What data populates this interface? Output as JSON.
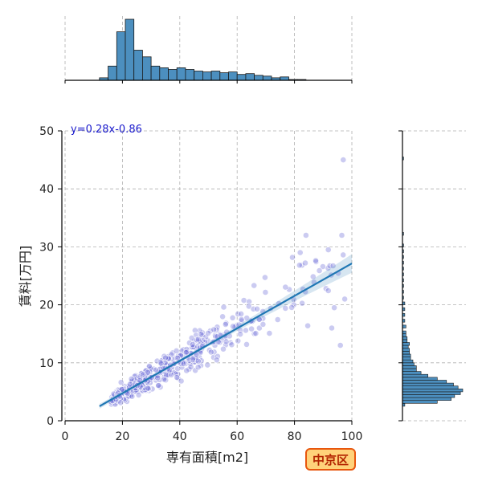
{
  "chart_data": {
    "type": "scatter",
    "title": "",
    "xlabel": "専有面積[m2]",
    "ylabel": "賃料[万円]",
    "xlim": [
      0,
      100
    ],
    "ylim": [
      0,
      50
    ],
    "x_ticks": [
      0,
      20,
      40,
      60,
      80,
      100
    ],
    "y_ticks": [
      0,
      10,
      20,
      30,
      40,
      50
    ],
    "grid": true,
    "regression": {
      "equation_label": "y=0.28x-0.86",
      "slope": 0.28,
      "intercept": -0.86,
      "x_range": [
        12,
        100
      ]
    },
    "badge": "中京区",
    "colors": {
      "points": "#6b6bd6",
      "regression_line": "#1f77b4",
      "histogram_fill": "#4c8fbf",
      "badge_fill": "#ffd27a",
      "badge_border": "#e8570e"
    },
    "x_histogram": {
      "bins": [
        12,
        15,
        18,
        21,
        24,
        27,
        30,
        33,
        36,
        39,
        42,
        45,
        48,
        51,
        54,
        57,
        60,
        63,
        66,
        69,
        72,
        75,
        78,
        81,
        84,
        87,
        90,
        93,
        96,
        99
      ],
      "counts": [
        3,
        17,
        58,
        73,
        36,
        28,
        17,
        15,
        13,
        15,
        13,
        11,
        10,
        11,
        9,
        10,
        7,
        8,
        6,
        5,
        3,
        4,
        1,
        1,
        0,
        0,
        0,
        0,
        0,
        0
      ]
    },
    "y_histogram": {
      "bins": [
        2.5,
        3,
        3.5,
        4,
        4.5,
        5,
        5.5,
        6,
        6.5,
        7,
        7.5,
        8,
        8.5,
        9,
        9.5,
        10,
        10.5,
        11,
        11.5,
        12,
        12.5,
        13,
        13.5,
        14,
        14.5,
        15,
        16,
        17,
        18,
        19,
        20,
        21,
        22,
        23,
        24,
        25,
        26,
        27,
        28,
        29,
        30,
        32,
        45
      ],
      "counts": [
        2,
        30,
        42,
        45,
        50,
        52,
        48,
        44,
        38,
        30,
        22,
        16,
        12,
        12,
        10,
        9,
        7,
        7,
        6,
        6,
        5,
        6,
        4,
        4,
        3,
        3,
        3,
        2,
        2,
        2,
        2,
        1,
        1,
        1,
        1,
        1,
        1,
        1,
        1,
        1,
        1,
        1,
        1
      ]
    }
  }
}
